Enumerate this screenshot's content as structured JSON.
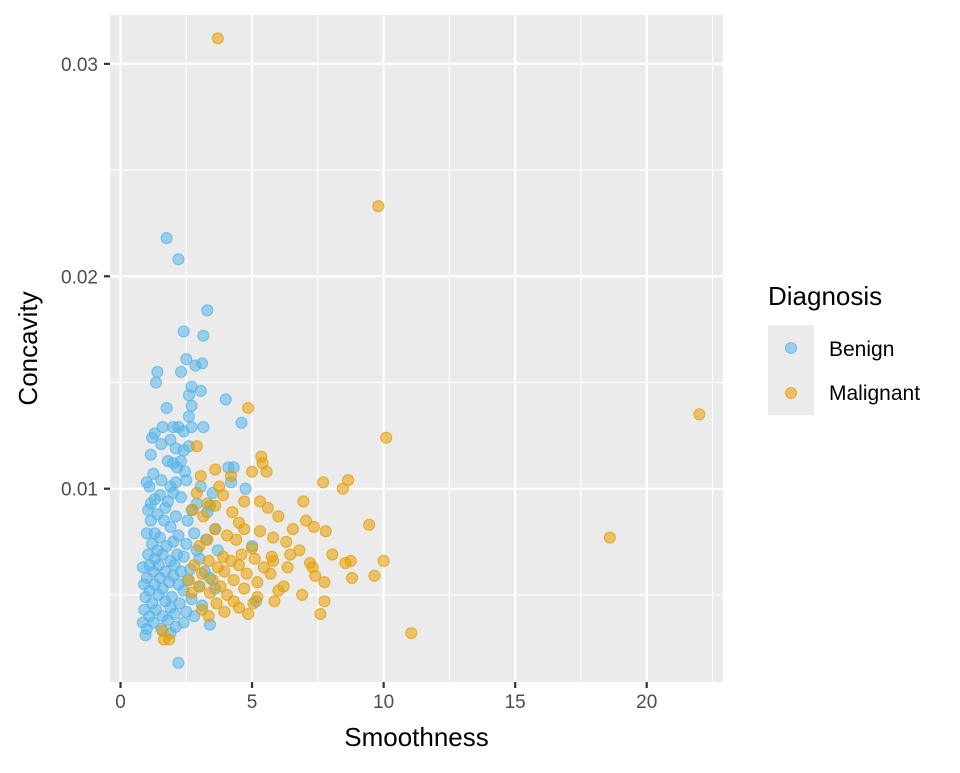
{
  "chart_data": {
    "type": "scatter",
    "title": "",
    "xlabel": "Smoothness",
    "ylabel": "Concavity",
    "xlim": [
      -0.4,
      22.9
    ],
    "ylim": [
      0.0009,
      0.0323
    ],
    "x_ticks": [
      0,
      5,
      10,
      15,
      20
    ],
    "x_tick_labels": [
      "0",
      "5",
      "10",
      "15",
      "20"
    ],
    "y_ticks": [
      0.01,
      0.02,
      0.03
    ],
    "y_tick_labels": [
      "0.01",
      "0.02",
      "0.03"
    ],
    "grid": true,
    "panel_background": "#ebebeb",
    "legend": {
      "title": "Diagnosis",
      "position": "right",
      "entries": [
        {
          "label": "Benign",
          "color": "#56b4e9"
        },
        {
          "label": "Malignant",
          "color": "#e69f00"
        }
      ]
    },
    "series": [
      {
        "name": "Benign",
        "color": "#56b4e9",
        "points": [
          [
            1.75,
            0.0218
          ],
          [
            2.2,
            0.0208
          ],
          [
            3.3,
            0.0184
          ],
          [
            2.4,
            0.0174
          ],
          [
            3.15,
            0.0172
          ],
          [
            2.5,
            0.0161
          ],
          [
            3.1,
            0.0159
          ],
          [
            2.85,
            0.0158
          ],
          [
            1.4,
            0.0155
          ],
          [
            2.3,
            0.0155
          ],
          [
            1.35,
            0.015
          ],
          [
            2.7,
            0.0148
          ],
          [
            3.05,
            0.0146
          ],
          [
            2.6,
            0.0144
          ],
          [
            4.0,
            0.0142
          ],
          [
            1.75,
            0.0138
          ],
          [
            2.7,
            0.0139
          ],
          [
            2.6,
            0.0134
          ],
          [
            4.6,
            0.0131
          ],
          [
            1.6,
            0.0129
          ],
          [
            2.0,
            0.0129
          ],
          [
            2.2,
            0.0129
          ],
          [
            2.7,
            0.0129
          ],
          [
            3.15,
            0.0129
          ],
          [
            1.3,
            0.0126
          ],
          [
            1.2,
            0.0124
          ],
          [
            2.4,
            0.0127
          ],
          [
            1.55,
            0.0121
          ],
          [
            1.9,
            0.0123
          ],
          [
            2.1,
            0.0119
          ],
          [
            2.4,
            0.0118
          ],
          [
            2.6,
            0.012
          ],
          [
            1.15,
            0.0116
          ],
          [
            1.8,
            0.0113
          ],
          [
            2.3,
            0.0113
          ],
          [
            2.0,
            0.0112
          ],
          [
            2.15,
            0.011
          ],
          [
            1.25,
            0.0107
          ],
          [
            2.45,
            0.0108
          ],
          [
            4.1,
            0.011
          ],
          [
            4.3,
            0.011
          ],
          [
            1.0,
            0.0103
          ],
          [
            1.55,
            0.0104
          ],
          [
            2.1,
            0.0103
          ],
          [
            2.5,
            0.0104
          ],
          [
            3.05,
            0.0101
          ],
          [
            4.2,
            0.0103
          ],
          [
            1.1,
            0.0101
          ],
          [
            1.9,
            0.0101
          ],
          [
            2.0,
            0.0098
          ],
          [
            3.5,
            0.0098
          ],
          [
            4.75,
            0.01
          ],
          [
            1.5,
            0.0097
          ],
          [
            2.3,
            0.0096
          ],
          [
            1.3,
            0.0095
          ],
          [
            1.15,
            0.0093
          ],
          [
            1.8,
            0.0094
          ],
          [
            2.9,
            0.0093
          ],
          [
            1.05,
            0.009
          ],
          [
            1.7,
            0.0091
          ],
          [
            2.7,
            0.009
          ],
          [
            3.4,
            0.0092
          ],
          [
            1.4,
            0.0088
          ],
          [
            2.1,
            0.0087
          ],
          [
            3.3,
            0.0089
          ],
          [
            1.15,
            0.0085
          ],
          [
            1.65,
            0.0085
          ],
          [
            2.55,
            0.0085
          ],
          [
            1.9,
            0.0082
          ],
          [
            3.6,
            0.0081
          ],
          [
            1.0,
            0.0079
          ],
          [
            1.3,
            0.0079
          ],
          [
            2.2,
            0.0078
          ],
          [
            2.8,
            0.0079
          ],
          [
            1.5,
            0.0077
          ],
          [
            2.0,
            0.0075
          ],
          [
            3.25,
            0.0076
          ],
          [
            1.2,
            0.0074
          ],
          [
            1.75,
            0.0073
          ],
          [
            2.5,
            0.0074
          ],
          [
            5.0,
            0.0073
          ],
          [
            1.4,
            0.0071
          ],
          [
            2.9,
            0.0071
          ],
          [
            1.05,
            0.0069
          ],
          [
            1.6,
            0.0069
          ],
          [
            2.15,
            0.0069
          ],
          [
            3.7,
            0.0071
          ],
          [
            1.3,
            0.0067
          ],
          [
            1.9,
            0.0066
          ],
          [
            2.4,
            0.0068
          ],
          [
            3.0,
            0.0067
          ],
          [
            0.85,
            0.0063
          ],
          [
            1.1,
            0.0064
          ],
          [
            1.45,
            0.0064
          ],
          [
            2.05,
            0.0064
          ],
          [
            2.65,
            0.0062
          ],
          [
            1.25,
            0.0061
          ],
          [
            1.7,
            0.0061
          ],
          [
            2.3,
            0.0061
          ],
          [
            3.2,
            0.0061
          ],
          [
            1.0,
            0.0058
          ],
          [
            1.5,
            0.0058
          ],
          [
            2.0,
            0.0059
          ],
          [
            2.55,
            0.0057
          ],
          [
            3.4,
            0.0058
          ],
          [
            0.9,
            0.0055
          ],
          [
            1.3,
            0.0055
          ],
          [
            1.85,
            0.0056
          ],
          [
            2.2,
            0.0055
          ],
          [
            3.0,
            0.0054
          ],
          [
            1.1,
            0.0052
          ],
          [
            1.6,
            0.0053
          ],
          [
            2.4,
            0.0052
          ],
          [
            3.6,
            0.0053
          ],
          [
            0.95,
            0.0049
          ],
          [
            1.45,
            0.005
          ],
          [
            1.95,
            0.0049
          ],
          [
            2.7,
            0.0048
          ],
          [
            1.2,
            0.0046
          ],
          [
            1.7,
            0.0047
          ],
          [
            2.25,
            0.0046
          ],
          [
            3.1,
            0.0045
          ],
          [
            5.15,
            0.0047
          ],
          [
            0.9,
            0.0043
          ],
          [
            1.35,
            0.0043
          ],
          [
            1.9,
            0.0044
          ],
          [
            2.5,
            0.0042
          ],
          [
            1.1,
            0.004
          ],
          [
            1.6,
            0.004
          ],
          [
            2.05,
            0.0041
          ],
          [
            2.8,
            0.004
          ],
          [
            0.85,
            0.0037
          ],
          [
            1.25,
            0.0037
          ],
          [
            1.8,
            0.0038
          ],
          [
            2.4,
            0.0037
          ],
          [
            3.4,
            0.0036
          ],
          [
            1.0,
            0.0034
          ],
          [
            1.55,
            0.0034
          ],
          [
            2.1,
            0.0035
          ],
          [
            1.9,
            0.0032
          ],
          [
            0.95,
            0.0031
          ],
          [
            2.2,
            0.0018
          ]
        ]
      },
      {
        "name": "Malignant",
        "color": "#e69f00",
        "points": [
          [
            3.7,
            0.0312
          ],
          [
            9.8,
            0.0233
          ],
          [
            22.0,
            0.0135
          ],
          [
            10.1,
            0.0124
          ],
          [
            4.85,
            0.0138
          ],
          [
            2.9,
            0.012
          ],
          [
            5.35,
            0.0115
          ],
          [
            5.4,
            0.0112
          ],
          [
            3.6,
            0.0109
          ],
          [
            5.55,
            0.0108
          ],
          [
            5.0,
            0.0108
          ],
          [
            3.05,
            0.0106
          ],
          [
            4.2,
            0.0106
          ],
          [
            7.7,
            0.0103
          ],
          [
            8.65,
            0.0104
          ],
          [
            3.75,
            0.0101
          ],
          [
            8.45,
            0.01
          ],
          [
            2.9,
            0.0098
          ],
          [
            3.9,
            0.0097
          ],
          [
            4.7,
            0.0094
          ],
          [
            5.3,
            0.0094
          ],
          [
            6.95,
            0.0094
          ],
          [
            3.3,
            0.0093
          ],
          [
            3.6,
            0.0092
          ],
          [
            5.6,
            0.0091
          ],
          [
            2.75,
            0.009
          ],
          [
            4.25,
            0.0089
          ],
          [
            6.0,
            0.0087
          ],
          [
            3.15,
            0.0087
          ],
          [
            7.05,
            0.0085
          ],
          [
            4.5,
            0.0084
          ],
          [
            9.45,
            0.0083
          ],
          [
            7.35,
            0.0082
          ],
          [
            3.6,
            0.0081
          ],
          [
            4.7,
            0.0081
          ],
          [
            5.3,
            0.008
          ],
          [
            6.55,
            0.0081
          ],
          [
            7.8,
            0.008
          ],
          [
            18.6,
            0.0077
          ],
          [
            4.05,
            0.0078
          ],
          [
            5.8,
            0.0077
          ],
          [
            3.3,
            0.0076
          ],
          [
            4.4,
            0.0076
          ],
          [
            6.3,
            0.0075
          ],
          [
            3.0,
            0.0073
          ],
          [
            5.0,
            0.0072
          ],
          [
            6.8,
            0.0071
          ],
          [
            8.05,
            0.0069
          ],
          [
            3.9,
            0.0068
          ],
          [
            4.6,
            0.0069
          ],
          [
            5.75,
            0.0068
          ],
          [
            6.45,
            0.0069
          ],
          [
            3.35,
            0.0066
          ],
          [
            4.2,
            0.0066
          ],
          [
            5.1,
            0.0067
          ],
          [
            5.8,
            0.0066
          ],
          [
            7.2,
            0.0065
          ],
          [
            8.75,
            0.0066
          ],
          [
            10.0,
            0.0066
          ],
          [
            2.8,
            0.0064
          ],
          [
            3.7,
            0.0063
          ],
          [
            4.5,
            0.0064
          ],
          [
            5.45,
            0.0063
          ],
          [
            6.35,
            0.0063
          ],
          [
            7.3,
            0.0063
          ],
          [
            8.55,
            0.0065
          ],
          [
            3.1,
            0.006
          ],
          [
            3.95,
            0.0061
          ],
          [
            4.8,
            0.006
          ],
          [
            5.7,
            0.006
          ],
          [
            7.4,
            0.0059
          ],
          [
            8.8,
            0.0058
          ],
          [
            9.65,
            0.0059
          ],
          [
            2.6,
            0.0057
          ],
          [
            3.5,
            0.0057
          ],
          [
            4.3,
            0.0057
          ],
          [
            5.2,
            0.0056
          ],
          [
            6.2,
            0.0054
          ],
          [
            7.75,
            0.0056
          ],
          [
            3.0,
            0.0054
          ],
          [
            3.8,
            0.0054
          ],
          [
            4.7,
            0.0053
          ],
          [
            6.0,
            0.0052
          ],
          [
            6.9,
            0.005
          ],
          [
            2.7,
            0.0051
          ],
          [
            3.4,
            0.0051
          ],
          [
            4.05,
            0.005
          ],
          [
            5.2,
            0.0049
          ],
          [
            4.3,
            0.0047
          ],
          [
            5.05,
            0.0046
          ],
          [
            5.85,
            0.0047
          ],
          [
            7.75,
            0.0047
          ],
          [
            3.65,
            0.0046
          ],
          [
            4.5,
            0.0044
          ],
          [
            3.1,
            0.0043
          ],
          [
            3.95,
            0.0042
          ],
          [
            4.85,
            0.0041
          ],
          [
            7.6,
            0.0041
          ],
          [
            3.35,
            0.004
          ],
          [
            1.6,
            0.0033
          ],
          [
            1.85,
            0.0029
          ],
          [
            1.65,
            0.0029
          ],
          [
            11.05,
            0.0032
          ]
        ]
      }
    ]
  }
}
